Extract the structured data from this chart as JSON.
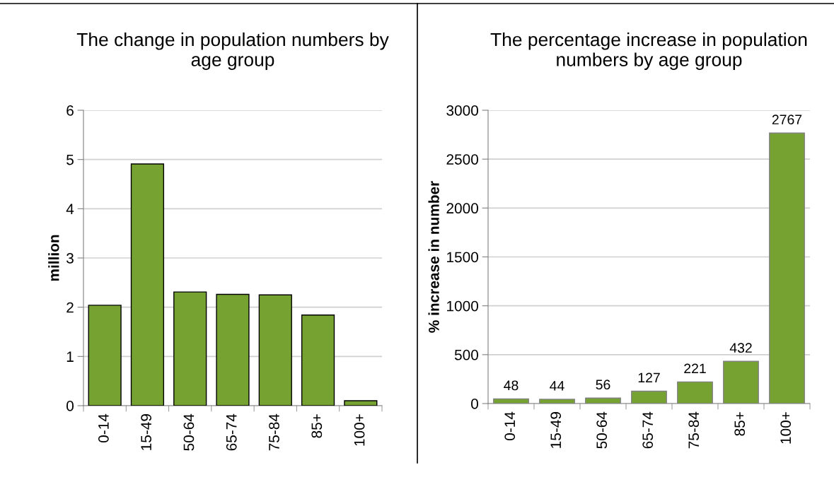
{
  "chart_data": [
    {
      "type": "bar",
      "title": "The change in population numbers by age group",
      "ylabel": "million",
      "categories": [
        "0-14",
        "15-49",
        "50-64",
        "65-74",
        "75-84",
        "85+",
        "100+"
      ],
      "values": [
        2.04,
        4.91,
        2.31,
        2.26,
        2.25,
        1.84,
        0.1
      ],
      "color": "#76a232",
      "ylim": [
        0,
        6
      ],
      "yticks": [
        0,
        1,
        2,
        3,
        4,
        5,
        6
      ],
      "grid": "y"
    },
    {
      "type": "bar",
      "title": "The percentage increase in population numbers by age group",
      "ylabel": "% increase in number",
      "categories": [
        "0-14",
        "15-49",
        "50-64",
        "65-74",
        "75-84",
        "85+",
        "100+"
      ],
      "values": [
        48,
        44,
        56,
        127,
        221,
        432,
        2767
      ],
      "color": "#76a232",
      "ylim": [
        0,
        3000
      ],
      "yticks": [
        0,
        500,
        1000,
        1500,
        2000,
        2500,
        3000
      ],
      "grid": "y",
      "data_labels": true
    }
  ]
}
